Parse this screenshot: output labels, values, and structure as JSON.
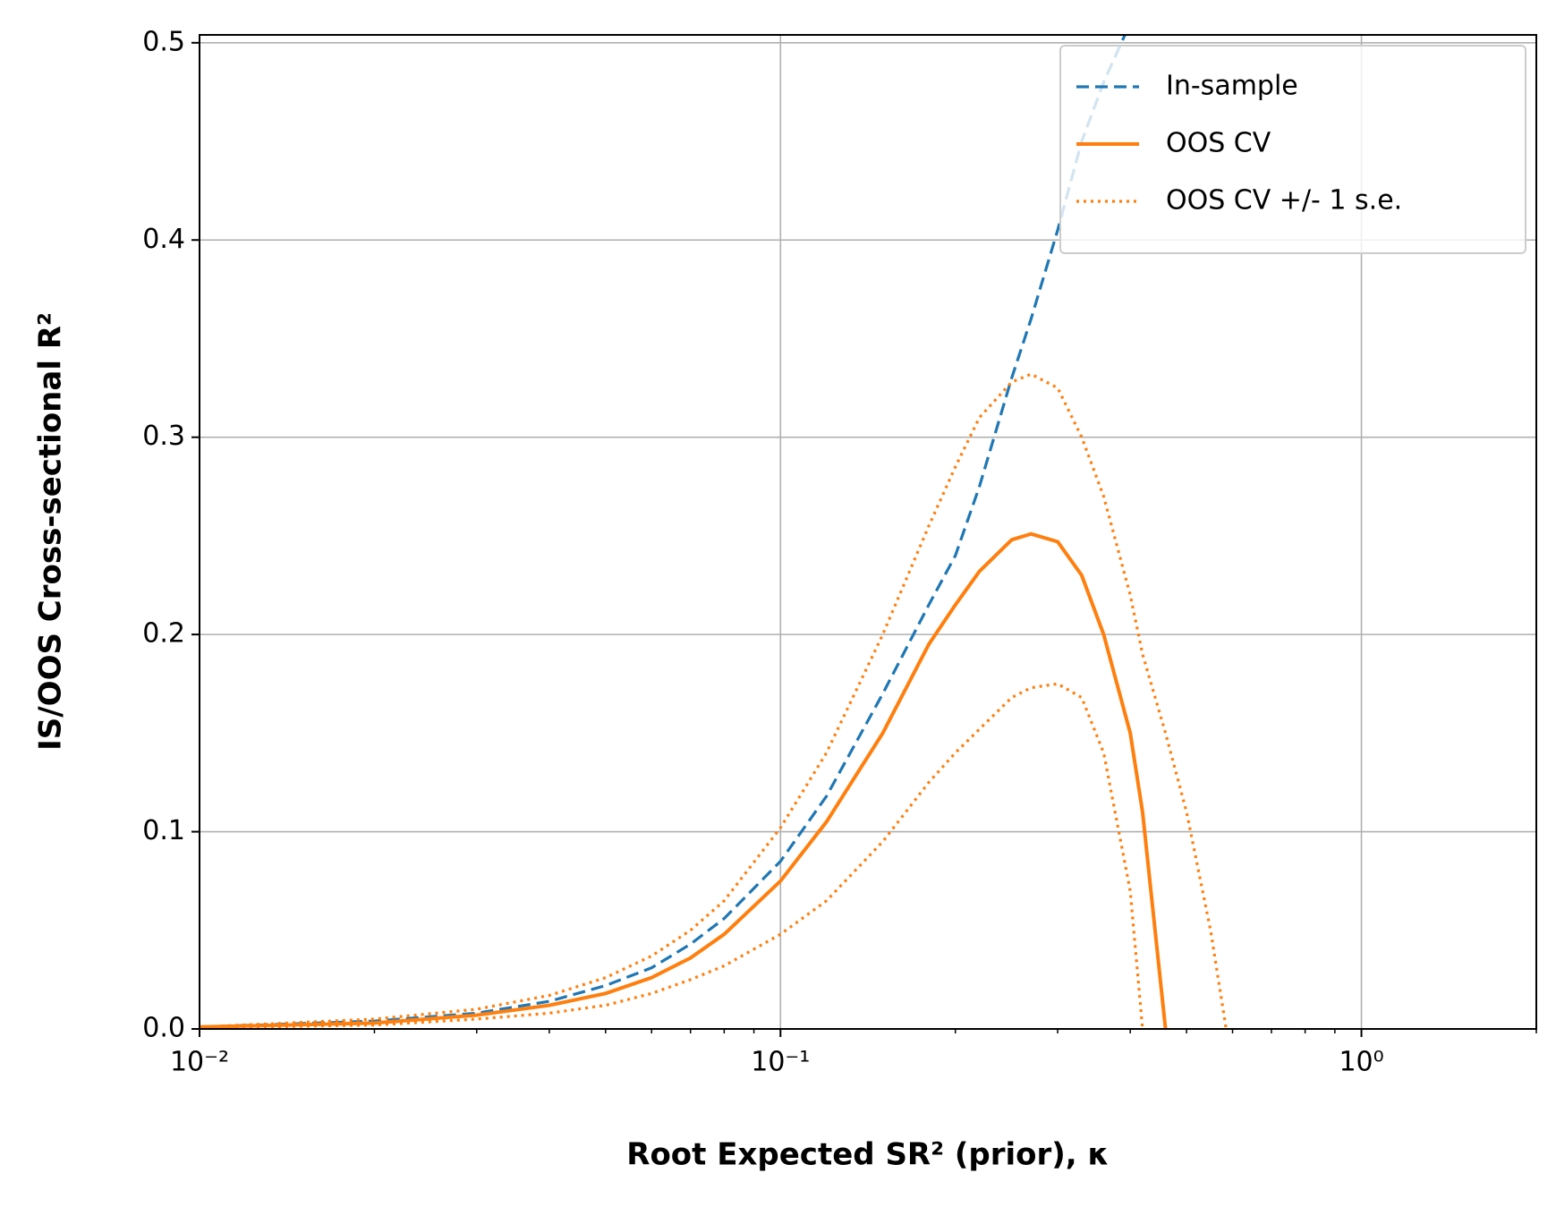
{
  "chart_data": {
    "type": "line",
    "xlabel": "Root Expected SR² (prior), κ",
    "ylabel": "IS/OOS Cross-sectional R²",
    "x": [
      0.01,
      0.02,
      0.03,
      0.04,
      0.05,
      0.06,
      0.07,
      0.08,
      0.1,
      0.12,
      0.15,
      0.18,
      0.2,
      0.22,
      0.25,
      0.27,
      0.3,
      0.33,
      0.36,
      0.4,
      0.42,
      0.46,
      0.5,
      0.55,
      0.585
    ],
    "series": [
      {
        "name": "In-sample",
        "color": "#1f77b4",
        "dash": "dashed",
        "values": [
          0.001,
          0.004,
          0.008,
          0.014,
          0.022,
          0.031,
          0.043,
          0.056,
          0.085,
          0.118,
          0.17,
          0.215,
          0.24,
          0.275,
          0.33,
          0.36,
          0.405,
          0.45,
          0.48,
          0.51,
          null,
          null,
          null,
          null,
          null
        ]
      },
      {
        "name": "OOS CV",
        "color": "#ff7f0e",
        "dash": "solid",
        "values": [
          0.001,
          0.003,
          0.007,
          0.012,
          0.018,
          0.026,
          0.036,
          0.048,
          0.075,
          0.105,
          0.15,
          0.195,
          0.215,
          0.232,
          0.248,
          0.251,
          0.247,
          0.23,
          0.2,
          0.15,
          0.11,
          0.0,
          null,
          null,
          null
        ]
      },
      {
        "name": "OOS CV +/- 1 s.e.",
        "color": "#ff7f0e",
        "dash": "dotted",
        "values": [
          0.001,
          0.005,
          0.01,
          0.017,
          0.026,
          0.037,
          0.05,
          0.065,
          0.102,
          0.14,
          0.2,
          0.255,
          0.285,
          0.31,
          0.328,
          0.332,
          0.325,
          0.3,
          0.27,
          0.22,
          0.19,
          0.15,
          0.11,
          0.05,
          0.0
        ]
      },
      {
        "name": null,
        "color": "#ff7f0e",
        "dash": "dotted",
        "values": [
          0.0005,
          0.002,
          0.005,
          0.008,
          0.012,
          0.018,
          0.025,
          0.032,
          0.048,
          0.065,
          0.095,
          0.125,
          0.14,
          0.152,
          0.168,
          0.173,
          0.175,
          0.168,
          0.14,
          0.07,
          0.0,
          null,
          null,
          null,
          null
        ]
      }
    ],
    "xlim": [
      0.01,
      2
    ],
    "ylim": [
      0,
      0.504
    ],
    "xscale": "log",
    "xticks": [
      {
        "value": 0.01,
        "label": "10⁻²"
      },
      {
        "value": 0.1,
        "label": "10⁻¹"
      },
      {
        "value": 1,
        "label": "10⁰"
      }
    ],
    "yticks": [
      {
        "value": 0,
        "label": "0.0"
      },
      0.1,
      0.2,
      0.3,
      0.4,
      0.5
    ],
    "grid": true,
    "legend": "upper right"
  }
}
